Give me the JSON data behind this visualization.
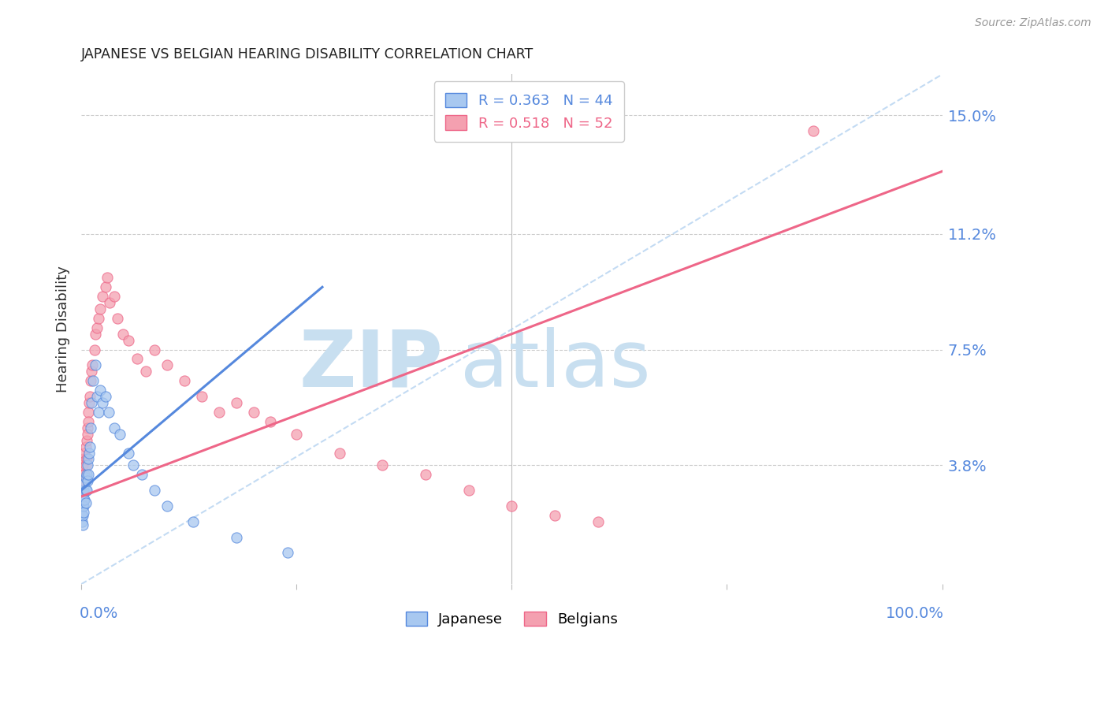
{
  "title": "JAPANESE VS BELGIAN HEARING DISABILITY CORRELATION CHART",
  "source": "Source: ZipAtlas.com",
  "ylabel": "Hearing Disability",
  "yticks": [
    0.038,
    0.075,
    0.112,
    0.15
  ],
  "ytick_labels": [
    "3.8%",
    "7.5%",
    "11.2%",
    "15.0%"
  ],
  "xlim": [
    0.0,
    1.0
  ],
  "ylim": [
    0.0,
    0.163
  ],
  "legend_blue_r": "0.363",
  "legend_blue_n": "44",
  "legend_pink_r": "0.518",
  "legend_pink_n": "52",
  "legend_label_blue": "Japanese",
  "legend_label_pink": "Belgians",
  "blue_color": "#A8C8F0",
  "pink_color": "#F4A0B0",
  "blue_line_color": "#5588DD",
  "pink_line_color": "#EE6688",
  "background_color": "#FFFFFF",
  "grid_color": "#CCCCCC",
  "title_color": "#222222",
  "axis_label_color": "#5588DD",
  "watermark_zip_color": "#C8DFF0",
  "watermark_atlas_color": "#C8DFF0",
  "japanese_x": [
    0.001,
    0.001,
    0.001,
    0.002,
    0.002,
    0.002,
    0.002,
    0.003,
    0.003,
    0.003,
    0.003,
    0.004,
    0.004,
    0.005,
    0.005,
    0.005,
    0.006,
    0.006,
    0.007,
    0.007,
    0.008,
    0.008,
    0.009,
    0.01,
    0.011,
    0.012,
    0.014,
    0.016,
    0.018,
    0.02,
    0.022,
    0.025,
    0.028,
    0.032,
    0.038,
    0.045,
    0.055,
    0.06,
    0.07,
    0.085,
    0.1,
    0.13,
    0.18,
    0.24
  ],
  "japanese_y": [
    0.025,
    0.022,
    0.02,
    0.028,
    0.025,
    0.022,
    0.019,
    0.03,
    0.027,
    0.025,
    0.023,
    0.032,
    0.027,
    0.034,
    0.03,
    0.026,
    0.035,
    0.03,
    0.038,
    0.033,
    0.04,
    0.035,
    0.042,
    0.044,
    0.05,
    0.058,
    0.065,
    0.07,
    0.06,
    0.055,
    0.062,
    0.058,
    0.06,
    0.055,
    0.05,
    0.048,
    0.042,
    0.038,
    0.035,
    0.03,
    0.025,
    0.02,
    0.015,
    0.01
  ],
  "belgian_x": [
    0.001,
    0.002,
    0.002,
    0.003,
    0.003,
    0.004,
    0.004,
    0.005,
    0.005,
    0.006,
    0.006,
    0.007,
    0.007,
    0.008,
    0.008,
    0.009,
    0.01,
    0.011,
    0.012,
    0.013,
    0.015,
    0.016,
    0.018,
    0.02,
    0.022,
    0.025,
    0.028,
    0.03,
    0.033,
    0.038,
    0.042,
    0.048,
    0.055,
    0.065,
    0.075,
    0.085,
    0.1,
    0.12,
    0.14,
    0.16,
    0.18,
    0.2,
    0.22,
    0.25,
    0.3,
    0.35,
    0.4,
    0.45,
    0.5,
    0.55,
    0.6,
    0.85
  ],
  "belgian_y": [
    0.035,
    0.03,
    0.038,
    0.033,
    0.04,
    0.035,
    0.042,
    0.038,
    0.044,
    0.04,
    0.046,
    0.05,
    0.048,
    0.055,
    0.052,
    0.058,
    0.06,
    0.065,
    0.068,
    0.07,
    0.075,
    0.08,
    0.082,
    0.085,
    0.088,
    0.092,
    0.095,
    0.098,
    0.09,
    0.092,
    0.085,
    0.08,
    0.078,
    0.072,
    0.068,
    0.075,
    0.07,
    0.065,
    0.06,
    0.055,
    0.058,
    0.055,
    0.052,
    0.048,
    0.042,
    0.038,
    0.035,
    0.03,
    0.025,
    0.022,
    0.02,
    0.145
  ],
  "blue_line_x": [
    0.0,
    0.28
  ],
  "blue_line_y": [
    0.03,
    0.095
  ],
  "pink_line_x": [
    0.0,
    1.0
  ],
  "pink_line_y": [
    0.028,
    0.132
  ]
}
